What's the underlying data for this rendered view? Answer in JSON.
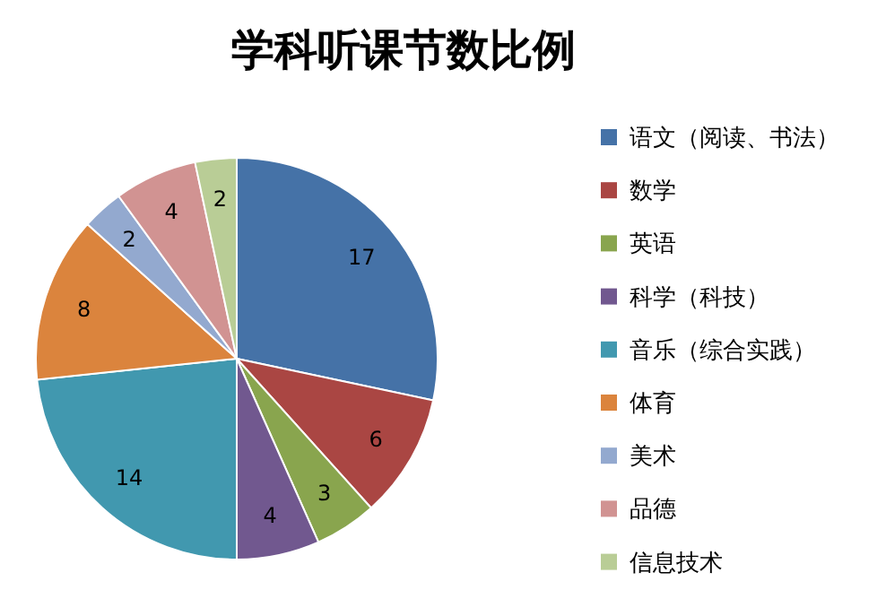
{
  "chart_data": {
    "type": "pie",
    "title": "学科听课节数比例",
    "categories": [
      "语文（阅读、书法）",
      "数学",
      "英语",
      "科学（科技）",
      "音乐（综合实践）",
      "体育",
      "美术",
      "品德",
      "信息技术"
    ],
    "values": [
      17,
      6,
      3,
      4,
      14,
      8,
      2,
      4,
      2
    ],
    "colors": [
      "#4572a7",
      "#aa4643",
      "#89a54e",
      "#71588f",
      "#4198af",
      "#db843d",
      "#93a9cf",
      "#d19392",
      "#b9cd96"
    ],
    "data_labels": true,
    "legend": "right"
  }
}
